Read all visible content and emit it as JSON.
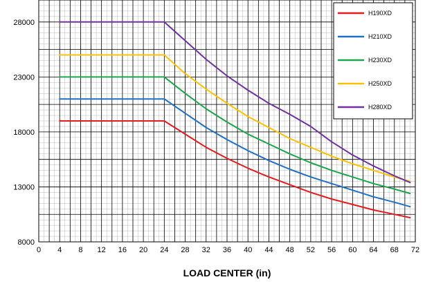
{
  "chart_data": {
    "type": "line",
    "title": "",
    "xlabel": "LOAD CENTER (in)",
    "ylabel": "",
    "xlim": [
      0,
      72
    ],
    "ylim": [
      8000,
      30000
    ],
    "x_ticks": [
      0,
      4,
      8,
      12,
      16,
      20,
      24,
      28,
      32,
      36,
      40,
      44,
      48,
      52,
      56,
      60,
      64,
      68,
      72
    ],
    "y_ticks": [
      8000,
      13000,
      18000,
      23000,
      28000
    ],
    "grid": true,
    "legend_position": "top-right",
    "series": [
      {
        "name": "H190XD",
        "color": "#e41a1c",
        "x": [
          4,
          8,
          12,
          16,
          20,
          24,
          28,
          32,
          36,
          40,
          44,
          48,
          52,
          56,
          60,
          64,
          68,
          71
        ],
        "y": [
          19000,
          19000,
          19000,
          19000,
          19000,
          19000,
          17800,
          16600,
          15600,
          14700,
          13900,
          13200,
          12500,
          11900,
          11400,
          10900,
          10500,
          10200
        ]
      },
      {
        "name": "H210XD",
        "color": "#1f6fc5",
        "x": [
          4,
          8,
          12,
          16,
          20,
          24,
          28,
          32,
          36,
          40,
          44,
          48,
          52,
          56,
          60,
          64,
          68,
          71
        ],
        "y": [
          21000,
          21000,
          21000,
          21000,
          21000,
          21000,
          19700,
          18400,
          17300,
          16300,
          15400,
          14600,
          13900,
          13300,
          12700,
          12100,
          11600,
          11200
        ]
      },
      {
        "name": "H230XD",
        "color": "#1aa64a",
        "x": [
          4,
          8,
          12,
          16,
          20,
          24,
          28,
          32,
          36,
          40,
          44,
          48,
          52,
          56,
          60,
          64,
          68,
          71
        ],
        "y": [
          23000,
          23000,
          23000,
          23000,
          23000,
          23000,
          21500,
          20100,
          18900,
          17800,
          16900,
          16000,
          15200,
          14500,
          13900,
          13300,
          12800,
          12400
        ]
      },
      {
        "name": "H250XD",
        "color": "#ffc000",
        "x": [
          4,
          8,
          12,
          16,
          20,
          24,
          28,
          32,
          36,
          40,
          44,
          48,
          52,
          56,
          60,
          64,
          68,
          71
        ],
        "y": [
          25000,
          25000,
          25000,
          25000,
          25000,
          25000,
          23300,
          21900,
          20600,
          19400,
          18400,
          17400,
          16600,
          15800,
          15100,
          14500,
          13900,
          13500
        ]
      },
      {
        "name": "H280XD",
        "color": "#7030a0",
        "x": [
          4,
          8,
          12,
          16,
          20,
          24,
          28,
          32,
          36,
          40,
          44,
          48,
          52,
          56,
          60,
          64,
          68,
          71
        ],
        "y": [
          28000,
          28000,
          28000,
          28000,
          28000,
          28000,
          26300,
          24600,
          23100,
          21800,
          20600,
          19600,
          18500,
          17100,
          15900,
          14900,
          14000,
          13400
        ]
      }
    ]
  }
}
